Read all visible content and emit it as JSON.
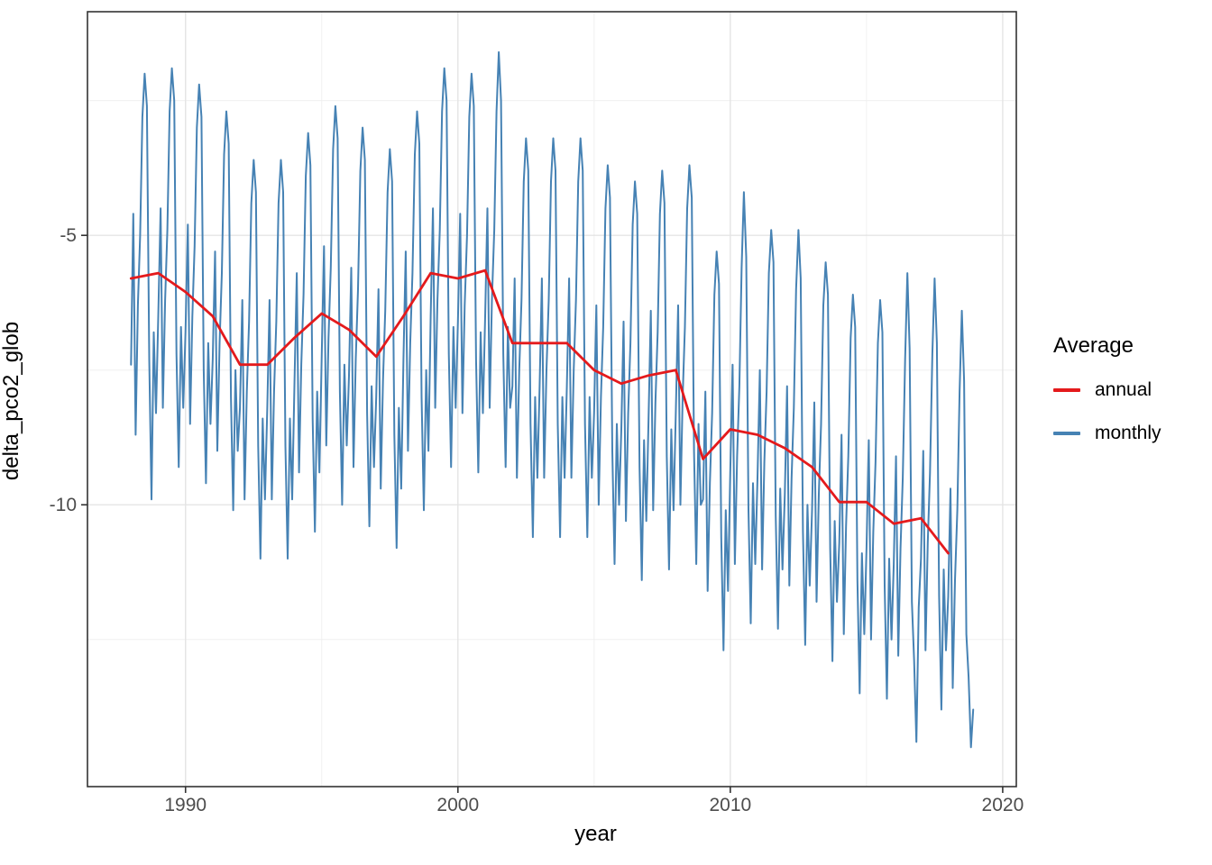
{
  "chart_data": {
    "type": "line",
    "title": "",
    "xlabel": "year",
    "ylabel": "delta_pco2_glob",
    "x_ticks": [
      1990,
      2000,
      2010,
      2020
    ],
    "x_minor_ticks": [
      1995,
      2005,
      2015
    ],
    "y_ticks": [
      -5,
      -10
    ],
    "y_minor_ticks": [
      -2.5,
      -7.5,
      -12.5
    ],
    "xlim": [
      1986.4,
      2020.5
    ],
    "ylim": [
      -15.23,
      -0.85
    ],
    "grid": "on",
    "legend": {
      "title": "Average",
      "position": "right",
      "entries": [
        {
          "label": "annual",
          "color": "#e41a1c"
        },
        {
          "label": "monthly",
          "color": "#4682b4"
        }
      ]
    },
    "colors": {
      "annual": "#e41a1c",
      "monthly": "#4682b4",
      "grid_major": "#e4e4e4",
      "grid_minor": "#f0f0f0",
      "panel_border": "#333333",
      "tick": "#333333",
      "tick_label": "#4d4d4d"
    },
    "series": [
      {
        "name": "annual",
        "years": [
          1988,
          1989,
          1990,
          1991,
          1992,
          1993,
          1994,
          1995,
          1996,
          1997,
          1998,
          1999,
          2000,
          2001,
          2002,
          2003,
          2004,
          2005,
          2006,
          2007,
          2008,
          2009,
          2010,
          2011,
          2012,
          2013,
          2014,
          2015,
          2016,
          2017,
          2018
        ],
        "values": [
          -5.8,
          -5.7,
          -6.05,
          -6.5,
          -7.4,
          -7.4,
          -6.9,
          -6.45,
          -6.75,
          -7.25,
          -6.5,
          -5.7,
          -5.8,
          -5.65,
          -7.0,
          -7.0,
          -7.0,
          -7.5,
          -7.75,
          -7.6,
          -7.5,
          -9.15,
          -8.6,
          -8.7,
          -8.95,
          -9.3,
          -9.95,
          -9.95,
          -10.35,
          -10.25,
          -10.9
        ]
      },
      {
        "name": "monthly",
        "start_year": 1988,
        "values_by_year": [
          [
            -7.4,
            -4.6,
            -8.7,
            -6.3,
            -5.0,
            -2.8,
            -2.0,
            -2.6,
            -7.3,
            -9.9,
            -6.8,
            -8.3
          ],
          [
            -6.5,
            -4.5,
            -8.2,
            -6.2,
            -4.9,
            -2.7,
            -1.9,
            -2.5,
            -7.2,
            -9.3,
            -6.7,
            -8.2
          ],
          [
            -6.8,
            -4.8,
            -8.5,
            -6.5,
            -5.2,
            -3.0,
            -2.2,
            -2.8,
            -7.5,
            -9.6,
            -7.0,
            -8.5
          ],
          [
            -7.3,
            -5.3,
            -9.0,
            -7.0,
            -5.7,
            -3.5,
            -2.7,
            -3.3,
            -8.0,
            -10.1,
            -7.5,
            -9.0
          ],
          [
            -8.2,
            -6.2,
            -9.9,
            -7.9,
            -6.6,
            -4.4,
            -3.6,
            -4.2,
            -8.9,
            -11.0,
            -8.4,
            -9.9
          ],
          [
            -8.2,
            -6.2,
            -9.9,
            -7.9,
            -6.6,
            -4.4,
            -3.6,
            -4.2,
            -8.9,
            -11.0,
            -8.4,
            -9.9
          ],
          [
            -7.7,
            -5.7,
            -9.4,
            -7.4,
            -6.1,
            -3.9,
            -3.1,
            -3.7,
            -8.4,
            -10.5,
            -7.9,
            -9.4
          ],
          [
            -7.2,
            -5.2,
            -8.9,
            -6.9,
            -5.6,
            -3.4,
            -2.6,
            -3.2,
            -7.9,
            -10.0,
            -7.4,
            -8.9
          ],
          [
            -7.6,
            -5.6,
            -9.3,
            -7.3,
            -6.0,
            -3.8,
            -3.0,
            -3.6,
            -8.3,
            -10.4,
            -7.8,
            -9.3
          ],
          [
            -8.0,
            -6.0,
            -9.7,
            -7.7,
            -6.4,
            -4.2,
            -3.4,
            -4.0,
            -8.7,
            -10.8,
            -8.2,
            -9.7
          ],
          [
            -7.3,
            -5.3,
            -9.0,
            -7.0,
            -5.7,
            -3.5,
            -2.7,
            -3.3,
            -8.0,
            -10.1,
            -7.5,
            -9.0
          ],
          [
            -6.5,
            -4.5,
            -8.2,
            -6.2,
            -4.9,
            -2.7,
            -1.9,
            -2.5,
            -7.2,
            -9.3,
            -6.7,
            -8.2
          ],
          [
            -6.6,
            -4.6,
            -8.3,
            -6.3,
            -5.0,
            -2.8,
            -2.0,
            -2.6,
            -7.3,
            -9.4,
            -6.8,
            -8.3
          ],
          [
            -6.5,
            -4.5,
            -8.2,
            -6.2,
            -4.9,
            -2.7,
            -1.6,
            -2.5,
            -7.2,
            -9.3,
            -6.7,
            -8.2
          ],
          [
            -7.8,
            -5.8,
            -9.5,
            -7.5,
            -6.2,
            -4.0,
            -3.2,
            -3.8,
            -8.5,
            -10.6,
            -8.0,
            -9.5
          ],
          [
            -7.8,
            -5.8,
            -9.5,
            -7.5,
            -6.2,
            -4.0,
            -3.2,
            -3.8,
            -8.5,
            -10.6,
            -8.0,
            -9.5
          ],
          [
            -7.8,
            -5.8,
            -9.5,
            -7.5,
            -6.2,
            -4.0,
            -3.2,
            -3.8,
            -8.5,
            -10.6,
            -8.0,
            -9.5
          ],
          [
            -8.3,
            -6.3,
            -10.0,
            -8.0,
            -6.7,
            -4.5,
            -3.7,
            -4.3,
            -9.0,
            -11.1,
            -8.5,
            -10.0
          ],
          [
            -8.6,
            -6.6,
            -10.3,
            -8.3,
            -7.0,
            -4.8,
            -4.0,
            -4.6,
            -9.3,
            -11.4,
            -8.8,
            -10.3
          ],
          [
            -8.4,
            -6.4,
            -10.1,
            -8.1,
            -6.8,
            -4.6,
            -3.8,
            -4.4,
            -9.1,
            -11.2,
            -8.6,
            -10.1
          ],
          [
            -8.3,
            -6.3,
            -10.0,
            -8.0,
            -6.7,
            -4.5,
            -3.7,
            -4.3,
            -9.0,
            -11.1,
            -8.5,
            -10.0
          ],
          [
            -9.9,
            -7.9,
            -11.6,
            -9.6,
            -8.3,
            -6.1,
            -5.3,
            -5.9,
            -10.6,
            -12.7,
            -10.1,
            -11.6
          ],
          [
            -9.4,
            -7.4,
            -11.1,
            -9.1,
            -7.8,
            -5.6,
            -4.2,
            -5.4,
            -10.1,
            -12.2,
            -9.6,
            -11.1
          ],
          [
            -9.5,
            -7.5,
            -11.2,
            -9.2,
            -7.9,
            -5.7,
            -4.9,
            -5.5,
            -10.2,
            -12.3,
            -9.7,
            -11.2
          ],
          [
            -9.8,
            -7.8,
            -11.5,
            -9.5,
            -8.2,
            -6.0,
            -4.9,
            -5.8,
            -10.5,
            -12.6,
            -10.0,
            -11.5
          ],
          [
            -10.1,
            -8.1,
            -11.8,
            -9.8,
            -8.5,
            -6.3,
            -5.5,
            -6.1,
            -10.8,
            -12.9,
            -10.3,
            -11.8
          ],
          [
            -10.7,
            -8.7,
            -12.4,
            -10.4,
            -9.1,
            -6.9,
            -6.1,
            -6.7,
            -11.4,
            -13.5,
            -10.9,
            -12.4
          ],
          [
            -10.8,
            -8.8,
            -12.5,
            -10.5,
            -9.2,
            -7.0,
            -6.2,
            -6.8,
            -11.5,
            -13.6,
            -11.0,
            -12.5
          ],
          [
            -11.1,
            -9.1,
            -12.8,
            -10.8,
            -9.5,
            -7.3,
            -5.7,
            -7.1,
            -11.8,
            -12.9,
            -14.4,
            -11.9
          ],
          [
            -11.0,
            -9.0,
            -12.7,
            -10.7,
            -9.4,
            -7.2,
            -5.8,
            -7.0,
            -11.7,
            -13.8,
            -11.2,
            -12.7
          ],
          [
            -11.7,
            -9.7,
            -13.4,
            -11.4,
            -10.1,
            -7.9,
            -6.4,
            -7.7,
            -12.4,
            -13.2,
            -14.5,
            -13.8
          ]
        ]
      }
    ]
  }
}
